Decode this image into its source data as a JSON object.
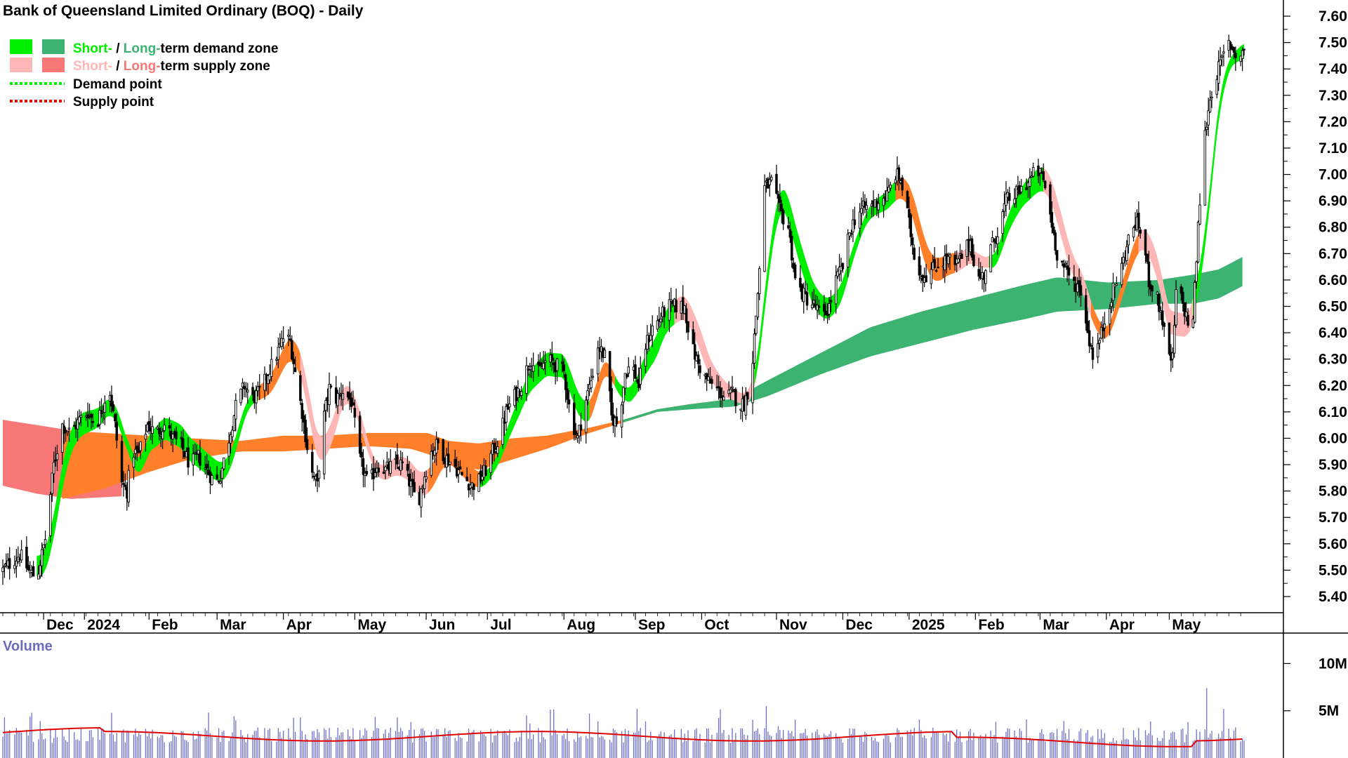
{
  "chart_data": {
    "type": "candlestick",
    "title": "Bank of Queensland Limited Ordinary (BOQ) - Daily",
    "legend": [
      {
        "short_label": "Short-",
        "sep": " / ",
        "long_label": "Long-",
        "rest": "term demand zone",
        "short_color": "#00ee00",
        "long_color": "#3cb371"
      },
      {
        "short_label": "Short-",
        "sep": " / ",
        "long_label": "Long-",
        "rest": "term supply zone",
        "short_color": "#ffb6b6",
        "long_color": "#f87878"
      },
      {
        "label": "Demand point",
        "color": "#00ee00"
      },
      {
        "label": "Supply point",
        "color": "#ee0000"
      }
    ],
    "price_axis": {
      "ylim": [
        5.36,
        7.64
      ],
      "ticks": [
        "7.60",
        "7.50",
        "7.40",
        "7.30",
        "7.20",
        "7.10",
        "7.00",
        "6.90",
        "6.80",
        "6.70",
        "6.60",
        "6.50",
        "6.40",
        "6.30",
        "6.20",
        "6.10",
        "6.00",
        "5.90",
        "5.80",
        "5.70",
        "5.60",
        "5.50",
        "5.40"
      ]
    },
    "time_axis": {
      "labels": [
        "Dec",
        "2024",
        "Feb",
        "Mar",
        "Apr",
        "May",
        "Jun",
        "Jul",
        "Aug",
        "Sep",
        "Oct",
        "Nov",
        "Dec",
        "2025",
        "Feb",
        "Mar",
        "Apr",
        "May"
      ],
      "label_days": [
        24,
        48,
        86,
        126,
        165,
        207,
        249,
        285,
        330,
        372,
        411,
        455,
        494,
        533,
        572,
        610,
        649,
        686
      ]
    },
    "volume_axis": {
      "label": "Volume",
      "ticks": [
        "10M",
        "5M"
      ],
      "ylim": [
        0,
        13
      ]
    },
    "colors": {
      "supply_short": "#ffb6b6",
      "supply_long": "#f87878",
      "demand_short": "#00ee00",
      "demand_long": "#3cb371",
      "orange_zone": "#ff7f2a",
      "volume_bar": "#7070c8",
      "volume_ma": "#e00000"
    },
    "price_path": [
      [
        0,
        5.5
      ],
      [
        5,
        5.53
      ],
      [
        10,
        5.56
      ],
      [
        15,
        5.5
      ],
      [
        20,
        5.47
      ],
      [
        25,
        5.62
      ],
      [
        30,
        5.9
      ],
      [
        35,
        6.05
      ],
      [
        40,
        6.02
      ],
      [
        45,
        6.07
      ],
      [
        50,
        6.1
      ],
      [
        55,
        6.05
      ],
      [
        60,
        6.15
      ],
      [
        62,
        6.22
      ],
      [
        66,
        6.05
      ],
      [
        70,
        5.83
      ],
      [
        73,
        5.8
      ],
      [
        76,
        5.95
      ],
      [
        80,
        5.94
      ],
      [
        85,
        6.05
      ],
      [
        90,
        6.02
      ],
      [
        95,
        6.05
      ],
      [
        100,
        6.0
      ],
      [
        105,
        5.97
      ],
      [
        110,
        5.9
      ],
      [
        115,
        5.93
      ],
      [
        120,
        5.88
      ],
      [
        125,
        5.83
      ],
      [
        128,
        5.86
      ],
      [
        132,
        5.97
      ],
      [
        137,
        6.12
      ],
      [
        142,
        6.2
      ],
      [
        147,
        6.15
      ],
      [
        152,
        6.18
      ],
      [
        156,
        6.25
      ],
      [
        160,
        6.3
      ],
      [
        165,
        6.38
      ],
      [
        169,
        6.37
      ],
      [
        172,
        6.25
      ],
      [
        176,
        6.1
      ],
      [
        181,
        5.88
      ],
      [
        185,
        5.82
      ],
      [
        188,
        6.05
      ],
      [
        192,
        6.19
      ],
      [
        196,
        6.15
      ],
      [
        200,
        6.18
      ],
      [
        205,
        6.14
      ],
      [
        210,
        5.92
      ],
      [
        215,
        5.82
      ],
      [
        220,
        5.9
      ],
      [
        225,
        5.88
      ],
      [
        230,
        5.9
      ],
      [
        235,
        5.9
      ],
      [
        240,
        5.82
      ],
      [
        244,
        5.75
      ],
      [
        248,
        5.86
      ],
      [
        252,
        5.95
      ],
      [
        256,
        5.98
      ],
      [
        260,
        5.93
      ],
      [
        265,
        5.9
      ],
      [
        270,
        5.86
      ],
      [
        276,
        5.82
      ],
      [
        280,
        5.84
      ],
      [
        284,
        5.88
      ],
      [
        288,
        5.95
      ],
      [
        292,
        6.0
      ],
      [
        296,
        6.1
      ],
      [
        300,
        6.15
      ],
      [
        305,
        6.2
      ],
      [
        310,
        6.3
      ],
      [
        315,
        6.25
      ],
      [
        320,
        6.3
      ],
      [
        325,
        6.28
      ],
      [
        330,
        6.25
      ],
      [
        334,
        6.08
      ],
      [
        338,
        6.0
      ],
      [
        342,
        6.12
      ],
      [
        346,
        6.22
      ],
      [
        350,
        6.35
      ],
      [
        355,
        6.3
      ],
      [
        358,
        6.08
      ],
      [
        362,
        6.05
      ],
      [
        366,
        6.25
      ],
      [
        370,
        6.28
      ],
      [
        374,
        6.2
      ],
      [
        378,
        6.35
      ],
      [
        382,
        6.42
      ],
      [
        386,
        6.45
      ],
      [
        391,
        6.5
      ],
      [
        396,
        6.5
      ],
      [
        401,
        6.5
      ],
      [
        405,
        6.35
      ],
      [
        409,
        6.28
      ],
      [
        413,
        6.23
      ],
      [
        417,
        6.2
      ],
      [
        421,
        6.18
      ],
      [
        425,
        6.15
      ],
      [
        429,
        6.17
      ],
      [
        433,
        6.13
      ],
      [
        436,
        6.13
      ],
      [
        440,
        6.22
      ],
      [
        444,
        6.55
      ],
      [
        448,
        6.95
      ],
      [
        452,
        6.97
      ],
      [
        456,
        6.88
      ],
      [
        460,
        6.82
      ],
      [
        462,
        6.8
      ],
      [
        466,
        6.6
      ],
      [
        470,
        6.55
      ],
      [
        474,
        6.52
      ],
      [
        478,
        6.5
      ],
      [
        482,
        6.45
      ],
      [
        486,
        6.5
      ],
      [
        490,
        6.6
      ],
      [
        494,
        6.65
      ],
      [
        498,
        6.78
      ],
      [
        502,
        6.85
      ],
      [
        506,
        6.87
      ],
      [
        510,
        6.88
      ],
      [
        515,
        6.9
      ],
      [
        520,
        6.92
      ],
      [
        525,
        7.0
      ],
      [
        528,
        6.98
      ],
      [
        532,
        6.85
      ],
      [
        536,
        6.7
      ],
      [
        540,
        6.62
      ],
      [
        544,
        6.62
      ],
      [
        548,
        6.65
      ],
      [
        552,
        6.67
      ],
      [
        556,
        6.68
      ],
      [
        560,
        6.65
      ],
      [
        565,
        6.7
      ],
      [
        569,
        6.75
      ],
      [
        573,
        6.6
      ],
      [
        577,
        6.62
      ],
      [
        581,
        6.72
      ],
      [
        586,
        6.8
      ],
      [
        590,
        6.9
      ],
      [
        595,
        6.92
      ],
      [
        600,
        6.95
      ],
      [
        604,
        6.98
      ],
      [
        608,
        7.02
      ],
      [
        612,
        6.98
      ],
      [
        616,
        6.85
      ],
      [
        620,
        6.7
      ],
      [
        624,
        6.65
      ],
      [
        628,
        6.6
      ],
      [
        632,
        6.58
      ],
      [
        635,
        6.55
      ],
      [
        638,
        6.4
      ],
      [
        641,
        6.32
      ],
      [
        644,
        6.35
      ],
      [
        647,
        6.42
      ],
      [
        650,
        6.5
      ],
      [
        654,
        6.58
      ],
      [
        658,
        6.65
      ],
      [
        662,
        6.75
      ],
      [
        666,
        6.82
      ],
      [
        670,
        6.78
      ],
      [
        674,
        6.6
      ],
      [
        678,
        6.55
      ],
      [
        682,
        6.45
      ],
      [
        685,
        6.3
      ],
      [
        688,
        6.3
      ],
      [
        690,
        6.55
      ],
      [
        693,
        6.53
      ],
      [
        697,
        6.44
      ],
      [
        700,
        6.45
      ],
      [
        703,
        6.8
      ],
      [
        706,
        7.1
      ],
      [
        709,
        7.25
      ],
      [
        712,
        7.35
      ],
      [
        715,
        7.4
      ],
      [
        718,
        7.45
      ],
      [
        721,
        7.5
      ],
      [
        724,
        7.47
      ],
      [
        727,
        7.43
      ],
      [
        730,
        7.48
      ]
    ],
    "bands": {
      "long_supply": {
        "days": [
          0,
          70
        ],
        "upper": [
          [
            0,
            6.07
          ],
          [
            20,
            6.05
          ],
          [
            40,
            6.03
          ],
          [
            70,
            6.0
          ]
        ],
        "lower": [
          [
            0,
            5.82
          ],
          [
            20,
            5.79
          ],
          [
            40,
            5.77
          ],
          [
            70,
            5.78
          ]
        ]
      },
      "orange_long": {
        "days": [
          35,
          430
        ],
        "upper": [
          [
            35,
            6.03
          ],
          [
            60,
            6.02
          ],
          [
            85,
            6.01
          ],
          [
            110,
            6.0
          ],
          [
            140,
            5.99
          ],
          [
            165,
            6.01
          ],
          [
            190,
            6.01
          ],
          [
            215,
            6.02
          ],
          [
            240,
            6.02
          ],
          [
            250,
            6.02
          ],
          [
            262,
            5.99
          ],
          [
            280,
            5.98
          ],
          [
            300,
            6.0
          ],
          [
            320,
            6.01
          ],
          [
            345,
            6.04
          ],
          [
            365,
            6.07
          ],
          [
            385,
            6.11
          ],
          [
            405,
            6.13
          ],
          [
            430,
            6.15
          ]
        ],
        "lower": [
          [
            35,
            5.77
          ],
          [
            60,
            5.81
          ],
          [
            85,
            5.87
          ],
          [
            110,
            5.92
          ],
          [
            140,
            5.95
          ],
          [
            165,
            5.95
          ],
          [
            190,
            5.96
          ],
          [
            215,
            5.97
          ],
          [
            240,
            5.96
          ],
          [
            250,
            5.94
          ],
          [
            262,
            5.91
          ],
          [
            280,
            5.88
          ],
          [
            300,
            5.92
          ],
          [
            320,
            5.96
          ],
          [
            345,
            6.02
          ],
          [
            365,
            6.06
          ],
          [
            385,
            6.1
          ],
          [
            405,
            6.12
          ],
          [
            430,
            6.13
          ]
        ]
      },
      "long_demand": {
        "days": [
          365,
          730
        ],
        "upper": [
          [
            365,
            6.07
          ],
          [
            385,
            6.11
          ],
          [
            405,
            6.13
          ],
          [
            430,
            6.15
          ],
          [
            450,
            6.22
          ],
          [
            480,
            6.32
          ],
          [
            510,
            6.42
          ],
          [
            540,
            6.48
          ],
          [
            570,
            6.53
          ],
          [
            600,
            6.58
          ],
          [
            620,
            6.61
          ],
          [
            650,
            6.59
          ],
          [
            680,
            6.6
          ],
          [
            700,
            6.62
          ],
          [
            715,
            6.64
          ],
          [
            730,
            6.69
          ]
        ],
        "lower": [
          [
            365,
            6.06
          ],
          [
            385,
            6.1
          ],
          [
            405,
            6.11
          ],
          [
            430,
            6.12
          ],
          [
            450,
            6.16
          ],
          [
            480,
            6.24
          ],
          [
            510,
            6.31
          ],
          [
            540,
            6.36
          ],
          [
            570,
            6.41
          ],
          [
            600,
            6.45
          ],
          [
            620,
            6.48
          ],
          [
            650,
            6.49
          ],
          [
            680,
            6.51
          ],
          [
            700,
            6.51
          ],
          [
            715,
            6.53
          ],
          [
            730,
            6.58
          ]
        ]
      }
    },
    "volume_ma": 2.3
  }
}
